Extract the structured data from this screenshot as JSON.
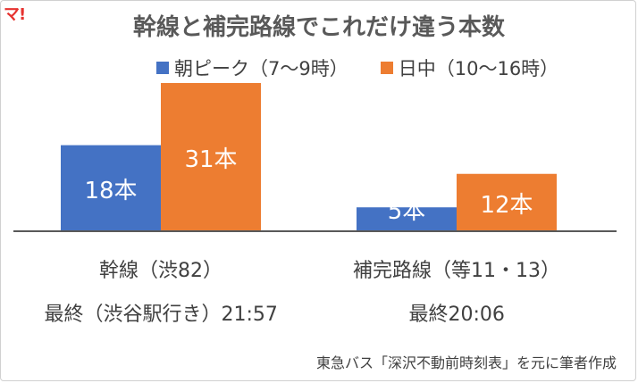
{
  "logo_text": "マ!",
  "chart_data": {
    "type": "bar",
    "title": "幹線と補完路線でこれだけ違う本数",
    "categories": [
      "幹線（渋82）",
      "補完路線（等11・13）"
    ],
    "category_sublabels": [
      "最終（渋谷駅行き）21:57",
      "最終20:06"
    ],
    "series": [
      {
        "name": "朝ピーク（7〜9時）",
        "values": [
          18,
          5
        ],
        "labels": [
          "18本",
          "5本"
        ],
        "color": "#4472c4"
      },
      {
        "name": "日中（10〜16時）",
        "values": [
          31,
          12
        ],
        "labels": [
          "31本",
          "12本"
        ],
        "color": "#ed7d31"
      }
    ],
    "ylim": [
      0,
      31
    ],
    "legend_position": "top",
    "grid": false
  },
  "source_note": "東急バス「深沢不動前時刻表」を元に筆者作成"
}
